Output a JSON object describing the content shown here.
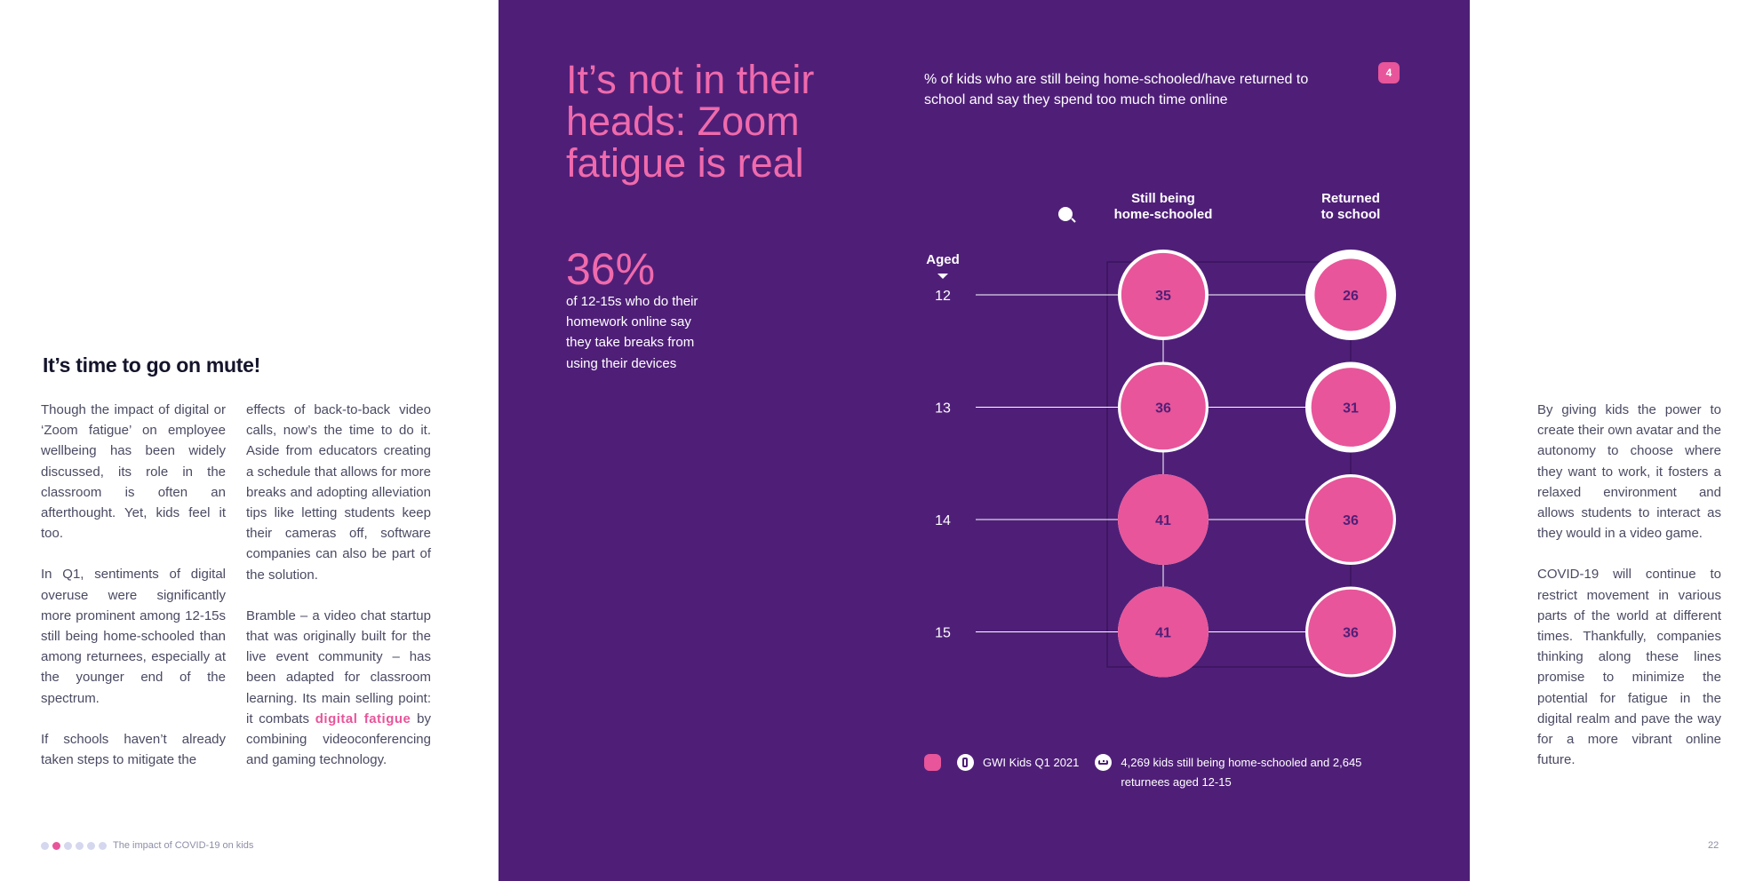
{
  "left": {
    "heading": "It’s time to go on mute!",
    "col1": [
      "Though the impact of digital or ‘Zoom fatigue’ on employee wellbeing has been widely discussed, its role in the classroom is often an afterthought. Yet, kids feel it too.",
      "In Q1, sentiments of digital overuse were significantly more prominent among 12-15s still being home-schooled than among returnees, especially at the younger end of the spectrum.",
      "If schools haven’t already taken steps to mitigate the"
    ],
    "col2": [
      "effects of back-to-back video calls, now’s the time to do it. Aside from educators creating a schedule that allows for more breaks and adopting alleviation tips like letting students keep their cameras off, software companies can also be part of the solution."
    ],
    "col2_p2_before": "Bramble – a video chat startup that was originally built for the live event community – has been adapted for classroom learning. Its main selling point: it combats ",
    "col2_p2_highlight": "digital fatigue",
    "col2_p2_after": " by combining videoconferencing and gaming technology.",
    "footer_title": "The impact of COVID-19 on kids"
  },
  "panel": {
    "title": "It’s not in their heads: Zoom fatigue is real",
    "stat_value": "36%",
    "stat_text": "of 12-15s who do their homework online say they take breaks from using their devices",
    "chart_title": "% of kids who are still being home-schooled/have returned to school and say they spend too much time online",
    "badge": "4",
    "legend_source": "GWI Kids Q1 2021",
    "legend_sample": "4,269 kids still being home-schooled and 2,645 returnees aged 12-15"
  },
  "chart_data": {
    "type": "table",
    "row_header": "Aged",
    "series": [
      {
        "name": "Still being home-schooled",
        "name_lines": [
          "Still being",
          "home-schooled"
        ],
        "values": [
          35,
          36,
          41,
          41
        ]
      },
      {
        "name": "Returned to school",
        "name_lines": [
          "Returned",
          "to school"
        ],
        "values": [
          26,
          31,
          36,
          36
        ]
      }
    ],
    "categories": [
      "12",
      "13",
      "14",
      "15"
    ],
    "colors": {
      "bubble": "#e8559a",
      "ring": "#ffffff",
      "label": "#4f1f78",
      "background": "#4f1f78"
    }
  },
  "right": {
    "paragraphs": [
      "By giving kids the power to create their own avatar and the autonomy to choose where they want to work, it fosters a relaxed environment and allows students to interact as they would in a video game.",
      "COVID-19 will continue to restrict movement in various parts of the world at different times. Thankfully, companies thinking along these lines promise to minimize the potential for fatigue in the digital realm and pave the way for a more vibrant online future."
    ],
    "page_number": "22"
  }
}
